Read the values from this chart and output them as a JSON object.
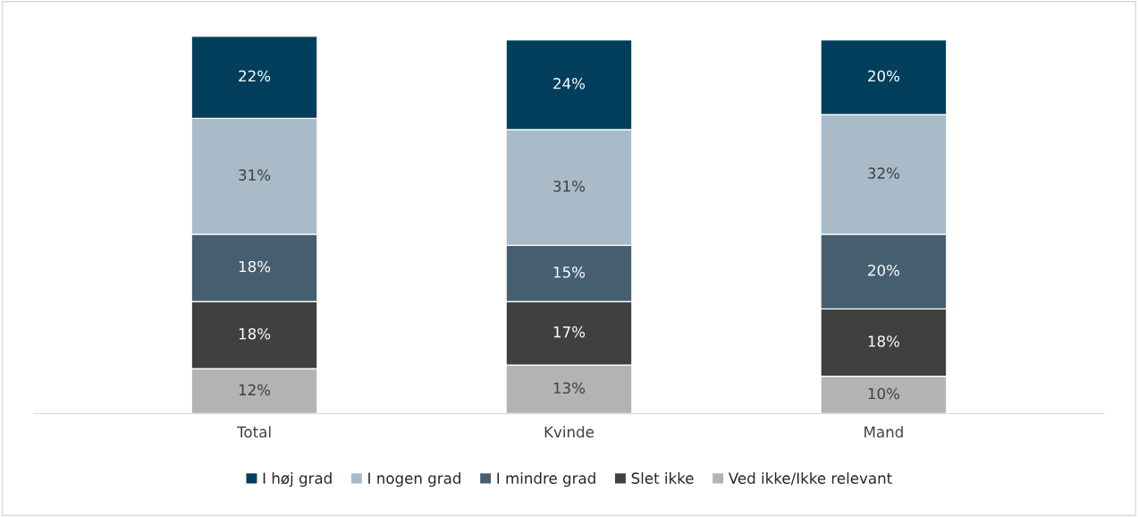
{
  "chart_data": {
    "type": "bar",
    "stacked": true,
    "categories": [
      "Total",
      "Kvinde",
      "Mand"
    ],
    "series": [
      {
        "name": "Ved ikke/Ikke relevant",
        "color": "#b3b3b3",
        "values": [
          12,
          13,
          10
        ],
        "value_labels": [
          "12%",
          "13%",
          "10%"
        ]
      },
      {
        "name": "Slet ikke",
        "color": "#404040",
        "values": [
          18,
          17,
          18
        ],
        "value_labels": [
          "18%",
          "17%",
          "18%"
        ]
      },
      {
        "name": "I mindre grad",
        "color": "#465f70",
        "values": [
          18,
          15,
          20
        ],
        "value_labels": [
          "18%",
          "15%",
          "20%"
        ]
      },
      {
        "name": "I nogen grad",
        "color": "#a9bbc8",
        "values": [
          31,
          31,
          32
        ],
        "value_labels": [
          "31%",
          "31%",
          "32%"
        ]
      },
      {
        "name": "I høj grad",
        "color": "#023f5c",
        "values": [
          22,
          24,
          20
        ],
        "value_labels": [
          "22%",
          "24%",
          "20%"
        ]
      }
    ],
    "legend": "bottom",
    "tick_labels": "x"
  }
}
